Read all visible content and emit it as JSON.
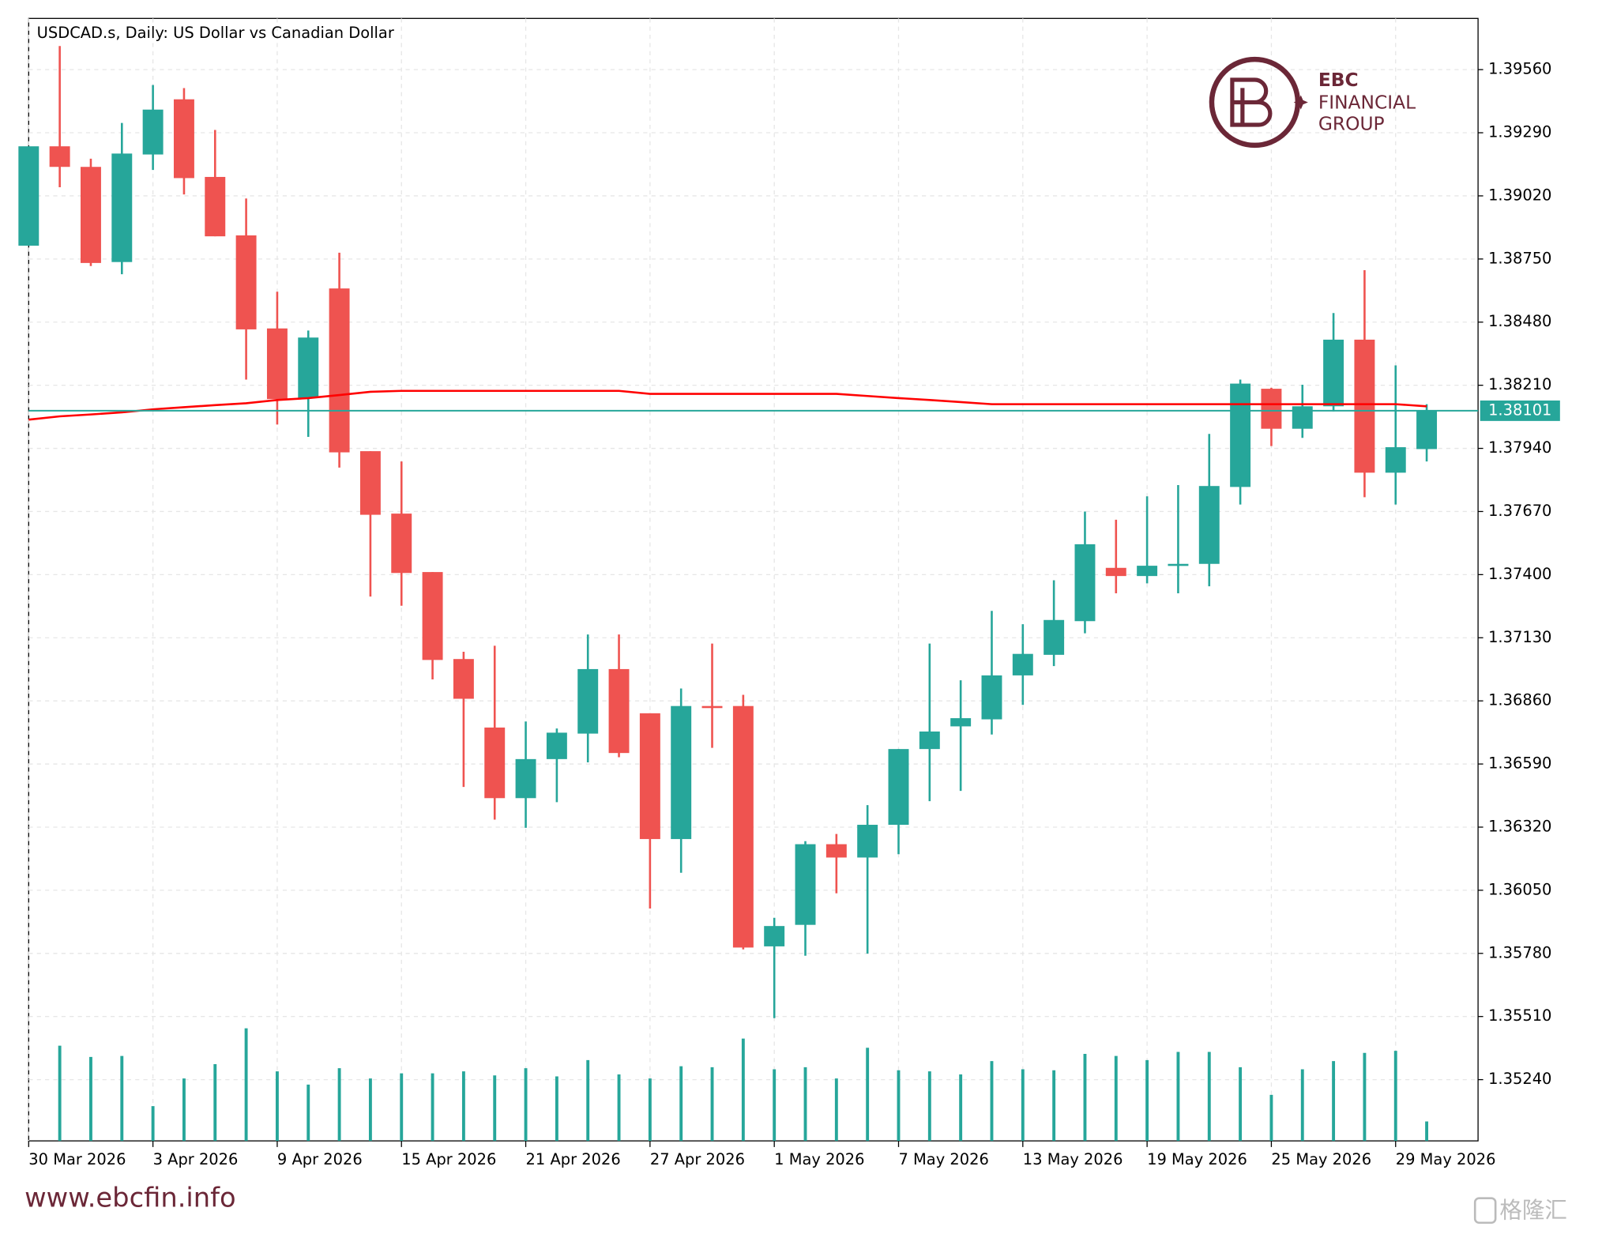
{
  "chart_data": {
    "type": "candlestick",
    "title": "USDCAD.s, Daily:  US Dollar vs Canadian Dollar",
    "categories": [
      "30 Mar 2026",
      null,
      null,
      null,
      "3 Apr 2026",
      null,
      null,
      null,
      "9 Apr 2026",
      null,
      null,
      null,
      "15 Apr 2026",
      null,
      null,
      null,
      "21 Apr 2026",
      null,
      null,
      null,
      "27 Apr 2026",
      null,
      null,
      null,
      "1 May 2026",
      null,
      null,
      null,
      "7 May 2026",
      null,
      null,
      null,
      "13 May 2026",
      null,
      null,
      null,
      "19 May 2026",
      null,
      null,
      null,
      "25 May 2026",
      null,
      null,
      null,
      "29 May 2026",
      null
    ],
    "open": [
      1.38807,
      1.39232,
      1.39144,
      1.38737,
      1.39197,
      1.39433,
      1.39101,
      1.38851,
      1.38453,
      1.38155,
      1.38624,
      1.37928,
      1.37661,
      1.37411,
      1.37039,
      1.36746,
      1.36444,
      1.36611,
      1.3672,
      1.36996,
      1.36807,
      1.36269,
      1.36838,
      1.36838,
      1.3581,
      1.35902,
      1.36247,
      1.3619,
      1.3633,
      1.36654,
      1.36751,
      1.36781,
      1.36969,
      1.37057,
      1.37201,
      1.37429,
      1.37394,
      1.37438,
      1.37446,
      1.37775,
      1.38195,
      1.38024,
      1.3812,
      1.38405,
      1.37836,
      1.37937
    ],
    "high": [
      1.39232,
      1.39661,
      1.39179,
      1.39332,
      1.39494,
      1.39481,
      1.39302,
      1.39009,
      1.3861,
      1.38444,
      1.38777,
      1.37928,
      1.37884,
      1.37411,
      1.3707,
      1.37096,
      1.36772,
      1.36742,
      1.37144,
      1.37144,
      1.36807,
      1.36913,
      1.37105,
      1.36886,
      1.35932,
      1.3626,
      1.36291,
      1.36414,
      1.36654,
      1.37105,
      1.36948,
      1.37245,
      1.37188,
      1.37376,
      1.3767,
      1.37635,
      1.37735,
      1.37783,
      1.38002,
      1.38234,
      1.38199,
      1.38212,
      1.38519,
      1.38702,
      1.38295,
      1.38129
    ],
    "low": [
      1.38807,
      1.39057,
      1.3872,
      1.38685,
      1.39131,
      1.39026,
      1.38847,
      1.38234,
      1.38042,
      1.37989,
      1.37858,
      1.37306,
      1.37267,
      1.36952,
      1.36492,
      1.36352,
      1.36317,
      1.36427,
      1.36597,
      1.36619,
      1.35972,
      1.36125,
      1.36659,
      1.35797,
      1.35503,
      1.3577,
      1.36037,
      1.35779,
      1.36204,
      1.36431,
      1.36475,
      1.36716,
      1.36843,
      1.37009,
      1.37149,
      1.3732,
      1.37363,
      1.3732,
      1.3735,
      1.377,
      1.3795,
      1.37985,
      1.38098,
      1.37731,
      1.377,
      1.37884
    ],
    "close": [
      1.39232,
      1.39144,
      1.38733,
      1.39201,
      1.39389,
      1.39096,
      1.38847,
      1.38449,
      1.38151,
      1.38414,
      1.37923,
      1.37656,
      1.37407,
      1.37035,
      1.36869,
      1.36444,
      1.36611,
      1.36724,
      1.36996,
      1.36637,
      1.36269,
      1.36838,
      1.36834,
      1.35805,
      1.35897,
      1.36247,
      1.3619,
      1.3633,
      1.36654,
      1.36729,
      1.36786,
      1.36969,
      1.37061,
      1.37206,
      1.3753,
      1.37394,
      1.37438,
      1.37446,
      1.37779,
      1.38217,
      1.38024,
      1.3812,
      1.38405,
      1.37836,
      1.37945,
      1.38101
    ],
    "volume": [
      null,
      93,
      82,
      83,
      34,
      61,
      75,
      110,
      68,
      55,
      71,
      61,
      66,
      66,
      68,
      64,
      71,
      63,
      79,
      65,
      61,
      73,
      72,
      100,
      70,
      72,
      61,
      91,
      69,
      68,
      65,
      78,
      70,
      69,
      85,
      83,
      79,
      87,
      87,
      72,
      45,
      70,
      78,
      86,
      88,
      19
    ],
    "ma": {
      "color": "#ff0000",
      "values": [
        1.38063,
        1.38077,
        1.38085,
        1.38094,
        1.38107,
        1.38116,
        1.38125,
        1.38133,
        1.38147,
        1.38155,
        1.38168,
        1.38182,
        1.38186,
        1.38186,
        1.38186,
        1.38186,
        1.38186,
        1.38186,
        1.38186,
        1.38186,
        1.38173,
        1.38173,
        1.38173,
        1.38173,
        1.38173,
        1.38173,
        1.38173,
        1.38164,
        1.38155,
        1.38147,
        1.38138,
        1.38129,
        1.38129,
        1.38129,
        1.38129,
        1.38129,
        1.38129,
        1.38129,
        1.38129,
        1.38129,
        1.38129,
        1.38129,
        1.38129,
        1.38129,
        1.38129,
        1.3812
      ]
    },
    "last_price": {
      "value": 1.38101,
      "label": "1.38101"
    },
    "up_color": "#26a69a",
    "down_color": "#ef5350",
    "volume_color": "#26a69a",
    "ylim": [
      1.34978,
      1.39779
    ],
    "yticks": [
      {
        "value": 1.3956,
        "label": "1.39560"
      },
      {
        "value": 1.3929,
        "label": "1.39290"
      },
      {
        "value": 1.3902,
        "label": "1.39020"
      },
      {
        "value": 1.3875,
        "label": "1.38750"
      },
      {
        "value": 1.3848,
        "label": "1.38480"
      },
      {
        "value": 1.3821,
        "label": "1.38210"
      },
      {
        "value": 1.3794,
        "label": "1.37940"
      },
      {
        "value": 1.3767,
        "label": "1.37670"
      },
      {
        "value": 1.374,
        "label": "1.37400"
      },
      {
        "value": 1.3713,
        "label": "1.37130"
      },
      {
        "value": 1.3686,
        "label": "1.36860"
      },
      {
        "value": 1.3659,
        "label": "1.36590"
      },
      {
        "value": 1.3632,
        "label": "1.36320"
      },
      {
        "value": 1.3605,
        "label": "1.36050"
      },
      {
        "value": 1.3578,
        "label": "1.35780"
      },
      {
        "value": 1.3551,
        "label": "1.35510"
      },
      {
        "value": 1.3524,
        "label": "1.35240"
      }
    ],
    "grid": true
  },
  "branding": {
    "logo": [
      "EBC",
      "FINANCIAL",
      "GROUP"
    ],
    "website": "www.ebcfin.info",
    "watermark": "格隆汇"
  }
}
